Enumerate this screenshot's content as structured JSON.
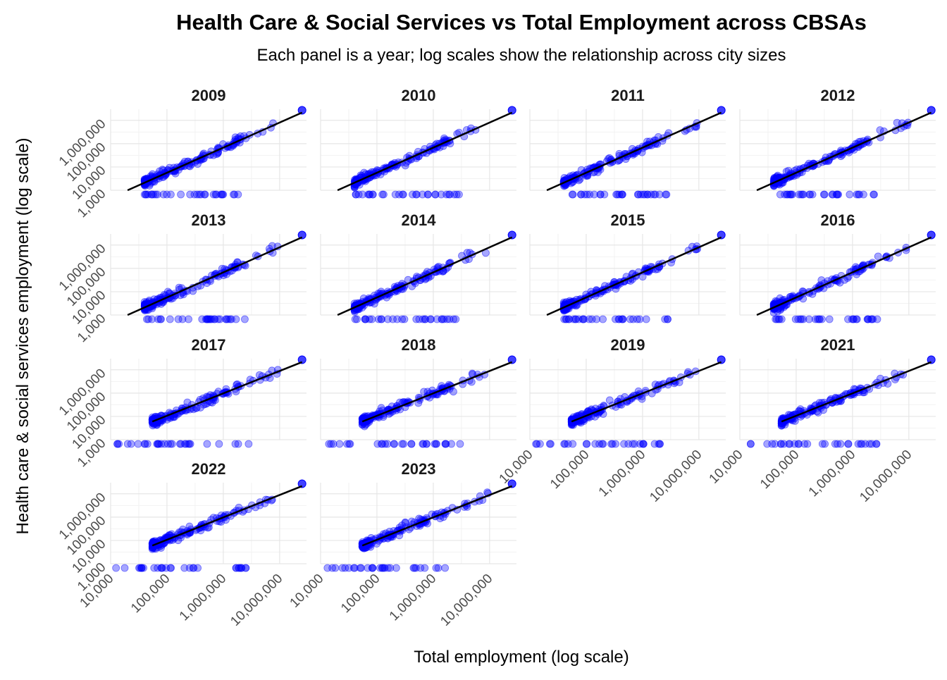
{
  "chart_data": {
    "type": "scatter",
    "title": "Health Care & Social Services vs Total Employment across CBSAs",
    "subtitle": "Each panel is a year; log scales show the relationship across city sizes",
    "xlabel": "Total employment (log scale)",
    "ylabel": "Health care & social services employment (log scale)",
    "x_scale": "log10",
    "y_scale": "log10",
    "xlim": [
      10000,
      30000000
    ],
    "ylim": [
      1000,
      3000000
    ],
    "x_ticks": [
      10000,
      100000,
      1000000,
      10000000
    ],
    "x_tick_labels": [
      "10,000",
      "100,000",
      "1,000,000",
      "10,000,000"
    ],
    "y_ticks": [
      1000,
      10000,
      100000,
      1000000
    ],
    "y_tick_labels": [
      "1,000",
      "10,000",
      "100,000",
      "1,000,000"
    ],
    "grid": true,
    "point_color": "#0000ff",
    "line_color": "#000000",
    "panels": [
      {
        "year": "2009",
        "fit": {
          "x0": 20000,
          "y0": 1000,
          "x1": 25000000,
          "y1": 2150000
        },
        "x_min": 20000,
        "x_max": 25000000,
        "zero_x": [
          40000,
          3000000
        ],
        "largest": {
          "x": 25000000,
          "y": 2700000
        }
      },
      {
        "year": "2010",
        "fit": {
          "x0": 20000,
          "y0": 1000,
          "x1": 25000000,
          "y1": 2150000
        },
        "x_min": 20000,
        "x_max": 25000000,
        "zero_x": [
          40000,
          3000000
        ],
        "largest": {
          "x": 25000000,
          "y": 2700000
        }
      },
      {
        "year": "2011",
        "fit": {
          "x0": 20000,
          "y0": 1000,
          "x1": 25000000,
          "y1": 2150000
        },
        "x_min": 20000,
        "x_max": 25000000,
        "zero_x": [
          40000,
          3000000
        ],
        "largest": {
          "x": 25000000,
          "y": 2700000
        }
      },
      {
        "year": "2012",
        "fit": {
          "x0": 20000,
          "y0": 1000,
          "x1": 25000000,
          "y1": 2150000
        },
        "x_min": 20000,
        "x_max": 25000000,
        "zero_x": [
          40000,
          3000000
        ],
        "largest": {
          "x": 25000000,
          "y": 2700000
        }
      },
      {
        "year": "2013",
        "fit": {
          "x0": 20000,
          "y0": 1000,
          "x1": 25000000,
          "y1": 2150000
        },
        "x_min": 20000,
        "x_max": 25000000,
        "zero_x": [
          40000,
          3000000
        ],
        "largest": {
          "x": 25000000,
          "y": 2700000
        }
      },
      {
        "year": "2014",
        "fit": {
          "x0": 20000,
          "y0": 1000,
          "x1": 25000000,
          "y1": 2150000
        },
        "x_min": 20000,
        "x_max": 25000000,
        "zero_x": [
          40000,
          3000000
        ],
        "largest": {
          "x": 25000000,
          "y": 2700000
        }
      },
      {
        "year": "2015",
        "fit": {
          "x0": 20000,
          "y0": 1000,
          "x1": 25000000,
          "y1": 2150000
        },
        "x_min": 20000,
        "x_max": 25000000,
        "zero_x": [
          40000,
          3000000
        ],
        "largest": {
          "x": 25000000,
          "y": 2700000
        }
      },
      {
        "year": "2016",
        "fit": {
          "x0": 20000,
          "y0": 1000,
          "x1": 25000000,
          "y1": 2150000
        },
        "x_min": 20000,
        "x_max": 25000000,
        "zero_x": [
          40000,
          3000000
        ],
        "largest": {
          "x": 25000000,
          "y": 2700000
        }
      },
      {
        "year": "2017",
        "fit": {
          "x0": 55000,
          "y0": 6000,
          "x1": 25000000,
          "y1": 2150000
        },
        "x_min": 55000,
        "x_max": 25000000,
        "zero_x": [
          12000,
          3000000
        ],
        "largest": {
          "x": 25000000,
          "y": 2700000
        }
      },
      {
        "year": "2018",
        "fit": {
          "x0": 55000,
          "y0": 6000,
          "x1": 25000000,
          "y1": 2150000
        },
        "x_min": 55000,
        "x_max": 25000000,
        "zero_x": [
          12000,
          3000000
        ],
        "largest": {
          "x": 25000000,
          "y": 2700000
        }
      },
      {
        "year": "2019",
        "fit": {
          "x0": 55000,
          "y0": 6000,
          "x1": 25000000,
          "y1": 2150000
        },
        "x_min": 55000,
        "x_max": 25000000,
        "zero_x": [
          12000,
          3000000
        ],
        "largest": {
          "x": 25000000,
          "y": 2700000
        }
      },
      {
        "year": "2021",
        "fit": {
          "x0": 55000,
          "y0": 6000,
          "x1": 25000000,
          "y1": 2150000
        },
        "x_min": 55000,
        "x_max": 25000000,
        "zero_x": [
          12000,
          3000000
        ],
        "largest": {
          "x": 25000000,
          "y": 2700000
        }
      },
      {
        "year": "2022",
        "fit": {
          "x0": 55000,
          "y0": 6000,
          "x1": 25000000,
          "y1": 2150000
        },
        "x_min": 55000,
        "x_max": 25000000,
        "zero_x": [
          12000,
          3000000
        ],
        "largest": {
          "x": 25000000,
          "y": 2700000
        }
      },
      {
        "year": "2023",
        "fit": {
          "x0": 55000,
          "y0": 6000,
          "x1": 25000000,
          "y1": 2150000
        },
        "x_min": 55000,
        "x_max": 25000000,
        "zero_x": [
          12000,
          3000000
        ],
        "largest": {
          "x": 25000000,
          "y": 2700000
        }
      }
    ]
  }
}
